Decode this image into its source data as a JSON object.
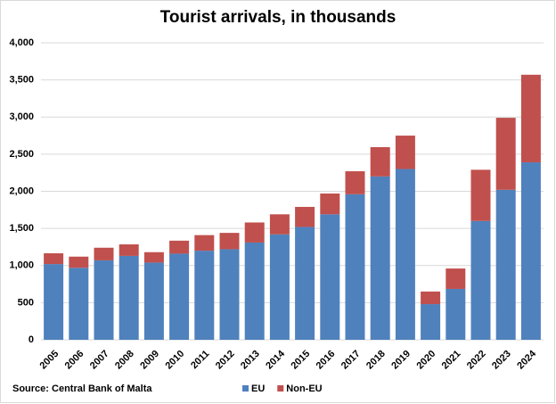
{
  "chart_data": {
    "type": "stacked-bar",
    "title": "Tourist arrivals, in thousands",
    "source": "Source: Central Bank of Malta",
    "categories": [
      "2005",
      "2006",
      "2007",
      "2008",
      "2009",
      "2010",
      "2011",
      "2012",
      "2013",
      "2014",
      "2015",
      "2016",
      "2017",
      "2018",
      "2019",
      "2020",
      "2021",
      "2022",
      "2023",
      "2024"
    ],
    "series": [
      {
        "name": "EU",
        "color": "#4f81bd",
        "values": [
          1020,
          970,
          1070,
          1130,
          1040,
          1160,
          1200,
          1220,
          1310,
          1420,
          1520,
          1690,
          1960,
          2200,
          2300,
          480,
          685,
          1600,
          2020,
          2390
        ]
      },
      {
        "name": "Non-EU",
        "color": "#c0504d",
        "values": [
          145,
          150,
          170,
          155,
          140,
          175,
          210,
          220,
          270,
          270,
          270,
          280,
          310,
          395,
          450,
          170,
          275,
          690,
          970,
          1180
        ]
      }
    ],
    "ylim": [
      0,
      4000
    ],
    "yticks": [
      0,
      500,
      {
        "value": 1000,
        "label": "1,000"
      },
      {
        "value": 1500,
        "label": "1,500"
      },
      {
        "value": 2000,
        "label": "2,000"
      },
      {
        "value": 2500,
        "label": "2,500"
      },
      {
        "value": 3000,
        "label": "3,000"
      },
      {
        "value": 3500,
        "label": "3,500"
      },
      {
        "value": 4000,
        "label": "4,000"
      }
    ],
    "grid": true
  }
}
